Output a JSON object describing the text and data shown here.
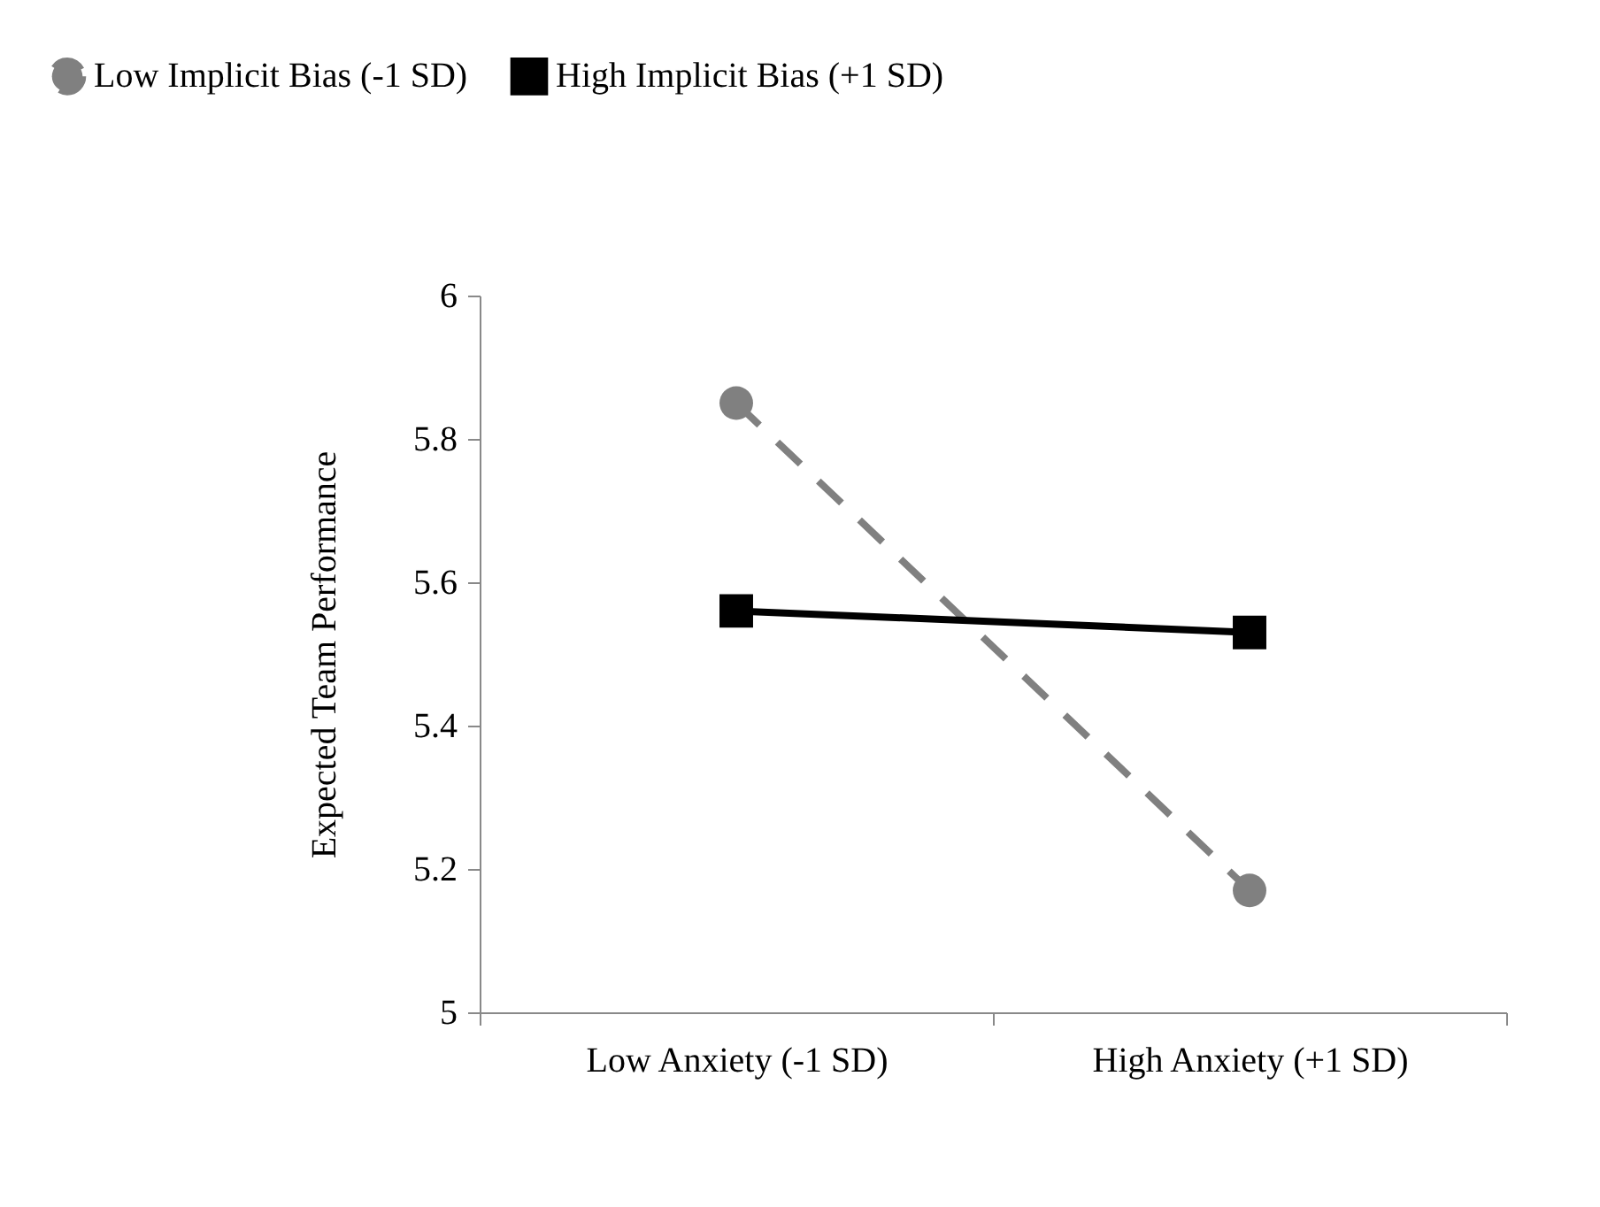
{
  "chart_data": {
    "type": "line",
    "ylabel": "Expected Team Performance",
    "categories": [
      "Low Anxiety (-1 SD)",
      "High Anxiety (+1 SD)"
    ],
    "series": [
      {
        "name": "Low Implicit Bias  (-1 SD)",
        "color": "#808080",
        "values": [
          5.85,
          5.17
        ],
        "marker": "circle",
        "line_style": "dashed"
      },
      {
        "name": "High Implicit Bias (+1 SD)",
        "color": "#000000",
        "values": [
          5.56,
          5.53
        ],
        "marker": "square",
        "line_style": "solid"
      }
    ],
    "ylim": [
      5,
      6
    ],
    "yticks": [
      5,
      5.2,
      5.4,
      5.6,
      5.8,
      6
    ],
    "grid": false,
    "legend": "top"
  }
}
